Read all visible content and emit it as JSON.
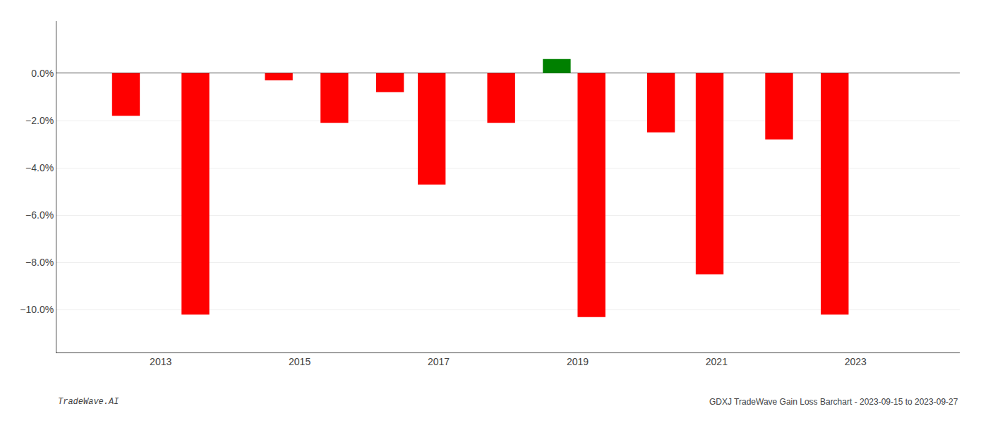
{
  "chart_data": {
    "type": "bar",
    "x": [
      2012.5,
      2013.5,
      2014.7,
      2015.5,
      2016.3,
      2016.9,
      2017.9,
      2018.7,
      2019.2,
      2020.2,
      2020.9,
      2021.9,
      2022.7
    ],
    "values": [
      -0.018,
      -0.102,
      -0.003,
      -0.021,
      -0.008,
      -0.047,
      -0.021,
      0.006,
      -0.103,
      -0.025,
      -0.085,
      -0.028,
      -0.102
    ],
    "colors": [
      "#ff0000",
      "#ff0000",
      "#ff0000",
      "#ff0000",
      "#ff0000",
      "#ff0000",
      "#ff0000",
      "#008000",
      "#ff0000",
      "#ff0000",
      "#ff0000",
      "#ff0000",
      "#ff0000"
    ],
    "xlim": [
      2011.5,
      2024.5
    ],
    "xticks": [
      2013,
      2015,
      2017,
      2019,
      2021,
      2023
    ],
    "ylim": [
      -0.118,
      0.022
    ],
    "yticks": [
      {
        "value": 0.0,
        "label": "0.0%"
      },
      {
        "value": -0.02,
        "label": "−2.0%"
      },
      {
        "value": -0.04,
        "label": "−4.0%"
      },
      {
        "value": -0.06,
        "label": "−6.0%"
      },
      {
        "value": -0.08,
        "label": "−8.0%"
      },
      {
        "value": -0.1,
        "label": "−10.0%"
      }
    ],
    "grid": true,
    "annotations": [
      "TradeWave.AI",
      "GDXJ TradeWave Gain Loss Barchart - 2023-09-15 to 2023-09-27"
    ]
  }
}
